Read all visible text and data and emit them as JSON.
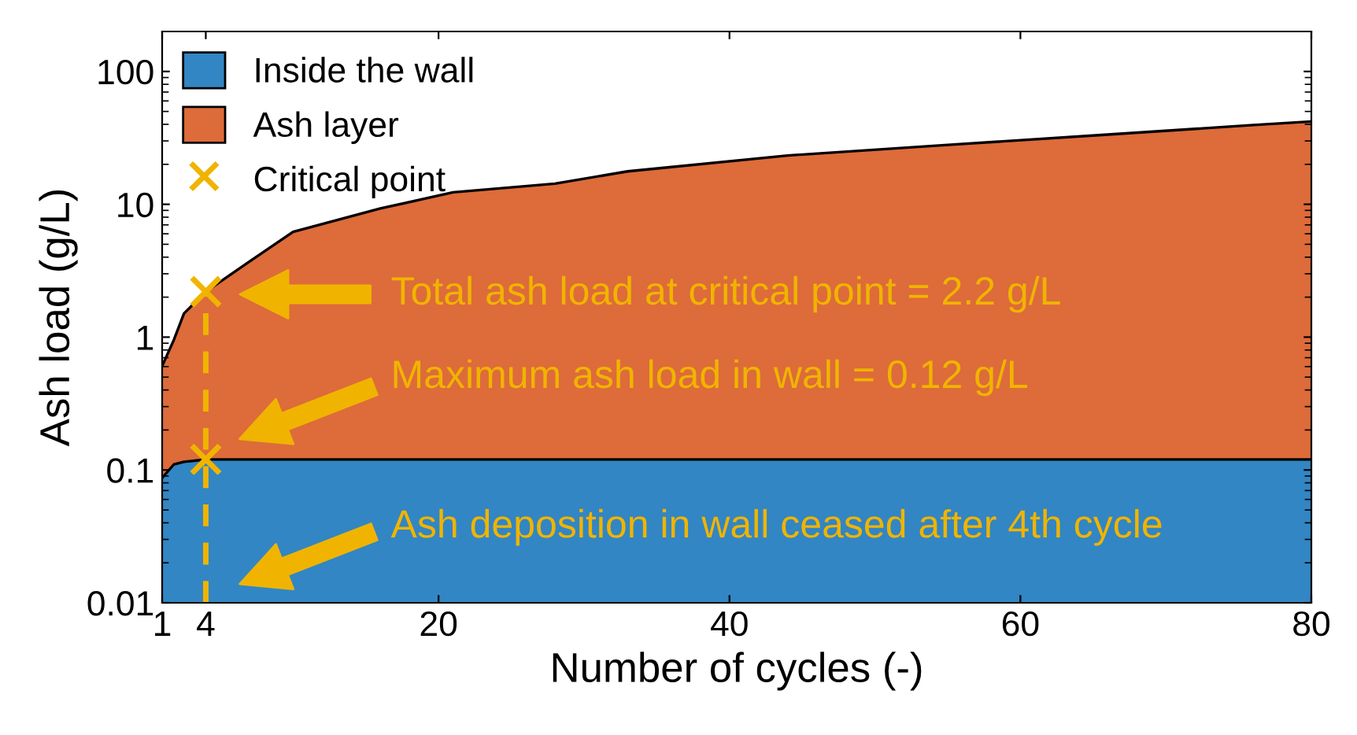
{
  "chart_data": {
    "type": "area",
    "stacked": true,
    "xlabel": "Number of cycles (-)",
    "ylabel": "Ash load (g/L)",
    "log": "y",
    "xlim": [
      1,
      80
    ],
    "xticks": [
      1,
      4,
      20,
      40,
      60,
      80
    ],
    "ylim": [
      0.01,
      200
    ],
    "yticks": [
      0.01,
      0.1,
      1,
      10,
      100
    ],
    "grid": false,
    "legend": "top left",
    "x": [
      1,
      1.8,
      2.5,
      4,
      7,
      10,
      16,
      21,
      28,
      33,
      44,
      55,
      66,
      76,
      80
    ],
    "series": [
      {
        "name": "Inside the wall",
        "color": "#3286c3",
        "values": [
          0.087,
          0.11,
          0.115,
          0.12,
          0.12,
          0.12,
          0.12,
          0.12,
          0.12,
          0.12,
          0.12,
          0.12,
          0.12,
          0.12,
          0.12
        ]
      },
      {
        "name": "Ash layer",
        "color": "#de6b3a",
        "values": [
          0.52,
          0.84,
          1.39,
          2.08,
          3.58,
          6.08,
          9.18,
          12.18,
          14.18,
          17.58,
          23.18,
          27.88,
          33.38,
          39.38,
          41.88
        ]
      },
      {
        "type": "scatter",
        "name": "Critical point",
        "x": [
          4,
          4
        ],
        "values": [
          2.2,
          0.12
        ],
        "color": "#f0b400",
        "marker": "cross"
      }
    ],
    "ref_lines": [
      {
        "axis": "x",
        "value": 4,
        "color": "#f0b400",
        "line_style": "dashed"
      }
    ],
    "annotations": [
      "Total ash load at critical point = 2.2 g/L",
      "Maximum ash load in wall = 0.12 g/L",
      "Ash deposition in wall ceased after 4th cycle"
    ]
  }
}
